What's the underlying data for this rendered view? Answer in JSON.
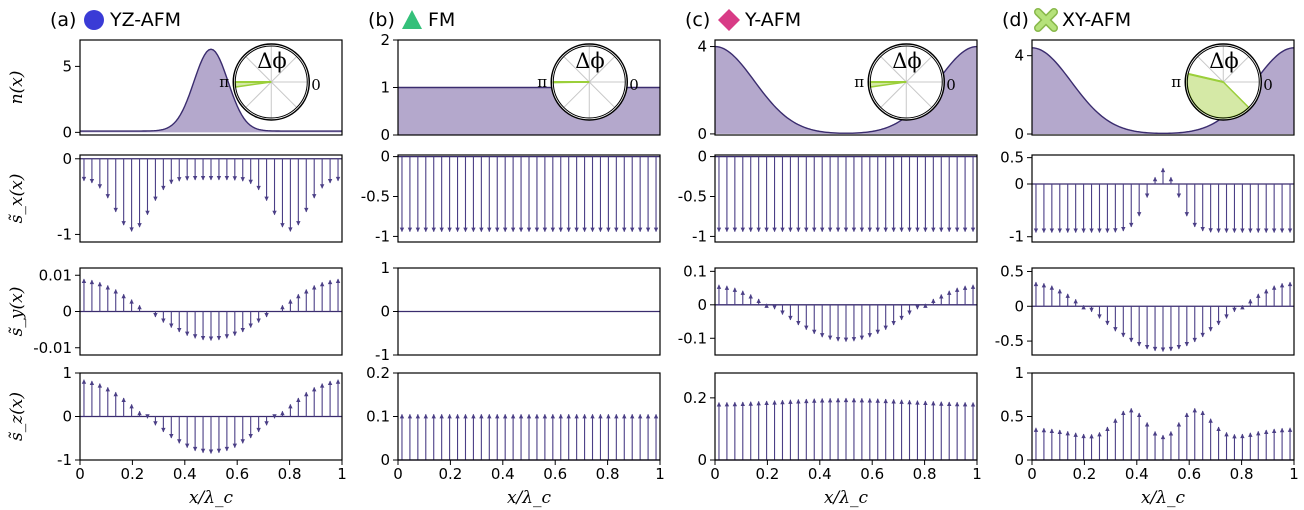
{
  "colors": {
    "density_fill": "#b4a8cc",
    "line": "#3a2c6e",
    "arrow": "#4b3f86",
    "inset_wedge": "#9bcf3a",
    "inset_wedge_fill": "#d5e9a6",
    "yz_marker": "#3a3bd6",
    "fm_marker": "#34c07a",
    "yafm_marker": "#d83b86",
    "xyafm_marker": "#b5e27a"
  },
  "xlabel": "x/λ_c",
  "row_labels": [
    "n(x)",
    "s̃_x(x)",
    "s̃_y(x)",
    "s̃_z(x)"
  ],
  "inset": {
    "label": "Δϕ",
    "left_label": "π",
    "right_label": "0"
  },
  "chart_data": [
    {
      "type": "area",
      "title": "(a)",
      "name": "YZ-AFM",
      "marker": "circle",
      "marker_color": "#3a3bd6",
      "x_range": [
        0,
        1
      ],
      "x_ticks": [
        "0",
        "0.2",
        "0.4",
        "0.6",
        "0.8",
        "1"
      ],
      "density": {
        "shape": "gaussian",
        "center": 0.5,
        "width": 0.065,
        "peak": 6.3,
        "base": 0.1,
        "ylim": [
          -0.2,
          7
        ],
        "yticks": [
          {
            "v": 0,
            "l": "0"
          },
          {
            "v": 5,
            "l": "5"
          }
        ]
      },
      "inset_wedge": {
        "from_deg": 180,
        "to_deg": 188
      },
      "sx": {
        "kind": "profile",
        "form": "double-dip",
        "ylim": [
          -1.1,
          0.05
        ],
        "yticks": [
          {
            "v": 0,
            "l": "0"
          },
          {
            "v": -1,
            "l": "-1"
          }
        ]
      },
      "sy": {
        "kind": "profile",
        "form": "cos",
        "amp": 0.0085,
        "base": 0.0005,
        "ylim": [
          -0.012,
          0.012
        ],
        "yticks": [
          {
            "v": 0.01,
            "l": "0.01"
          },
          {
            "v": 0,
            "l": "0"
          },
          {
            "v": -0.01,
            "l": "-0.01"
          }
        ]
      },
      "sz": {
        "kind": "profile",
        "form": "cos",
        "amp": 0.85,
        "base": 0.0,
        "ylim": [
          -1,
          1
        ],
        "yticks": [
          {
            "v": 1,
            "l": "1"
          },
          {
            "v": 0,
            "l": "0"
          },
          {
            "v": -1,
            "l": "-1"
          }
        ]
      }
    },
    {
      "type": "area",
      "title": "(b)",
      "name": "FM",
      "marker": "triangle",
      "marker_color": "#34c07a",
      "x_range": [
        0,
        1
      ],
      "x_ticks": [
        "0",
        "0.2",
        "0.4",
        "0.6",
        "0.8",
        "1"
      ],
      "density": {
        "shape": "flat",
        "value": 1,
        "ylim": [
          0,
          2
        ],
        "yticks": [
          {
            "v": 0,
            "l": "0"
          },
          {
            "v": 1,
            "l": "1"
          },
          {
            "v": 2,
            "l": "2"
          }
        ]
      },
      "inset_wedge": {
        "from_deg": 180,
        "to_deg": 181
      },
      "sx": {
        "kind": "constant",
        "value": -0.94,
        "ylim": [
          -1.07,
          0.02
        ],
        "yticks": [
          {
            "v": 0,
            "l": "0"
          },
          {
            "v": -0.5,
            "l": "-0.5"
          },
          {
            "v": -1,
            "l": "-1"
          }
        ]
      },
      "sy": {
        "kind": "zero",
        "ylim": [
          -1,
          1
        ],
        "yticks": [
          {
            "v": 1,
            "l": "1"
          },
          {
            "v": 0,
            "l": "0"
          },
          {
            "v": -1,
            "l": "-1"
          }
        ]
      },
      "sz": {
        "kind": "constant",
        "value": 0.105,
        "ylim": [
          0,
          0.2
        ],
        "yticks": [
          {
            "v": 0.2,
            "l": "0.2"
          },
          {
            "v": 0.1,
            "l": "0.1"
          },
          {
            "v": 0,
            "l": "0"
          }
        ]
      }
    },
    {
      "type": "area",
      "title": "(c)",
      "name": "Y-AFM",
      "marker": "diamond",
      "marker_color": "#d83b86",
      "x_range": [
        0,
        1
      ],
      "x_ticks": [
        "0",
        "0.2",
        "0.4",
        "0.6",
        "0.8",
        "1"
      ],
      "density": {
        "shape": "edges",
        "width": 0.15,
        "peak": 4.0,
        "ylim": [
          -0.05,
          4.3
        ],
        "yticks": [
          {
            "v": 0,
            "l": "0"
          },
          {
            "v": 4,
            "l": "4"
          }
        ]
      },
      "inset_wedge": {
        "from_deg": 180,
        "to_deg": 188
      },
      "sx": {
        "kind": "constant",
        "value": -0.94,
        "ylim": [
          -1.07,
          0.02
        ],
        "yticks": [
          {
            "v": 0,
            "l": "0"
          },
          {
            "v": -0.5,
            "l": "-0.5"
          },
          {
            "v": -1,
            "l": "-1"
          }
        ]
      },
      "sy": {
        "kind": "profile",
        "form": "cos",
        "amp": 0.085,
        "base": -0.025,
        "ylim": [
          -0.15,
          0.11
        ],
        "yticks": [
          {
            "v": 0.1,
            "l": "0.1"
          },
          {
            "v": 0,
            "l": "0"
          },
          {
            "v": -0.1,
            "l": "-0.1"
          }
        ]
      },
      "sz": {
        "kind": "profile",
        "form": "cos",
        "amp": -0.007,
        "base": 0.192,
        "ylim": [
          0,
          0.28
        ],
        "yticks": [
          {
            "v": 0.2,
            "l": "0.2"
          },
          {
            "v": 0,
            "l": "0"
          }
        ]
      }
    },
    {
      "type": "area",
      "title": "(d)",
      "name": "XY-AFM",
      "marker": "cross",
      "marker_color": "#b5e27a",
      "x_range": [
        0,
        1
      ],
      "x_ticks": [
        "0",
        "0.2",
        "0.4",
        "0.6",
        "0.8",
        "1"
      ],
      "density": {
        "shape": "edges",
        "width": 0.15,
        "peak": 4.4,
        "ylim": [
          -0.05,
          4.8
        ],
        "yticks": [
          {
            "v": 0,
            "l": "0"
          },
          {
            "v": 4,
            "l": "4"
          }
        ]
      },
      "inset_wedge": {
        "from_deg": 167,
        "to_deg": 315
      },
      "sx": {
        "kind": "profile",
        "form": "center-bump",
        "ylim": [
          -1.1,
          0.55
        ],
        "yticks": [
          {
            "v": 0.5,
            "l": "0.5"
          },
          {
            "v": 0,
            "l": "0"
          },
          {
            "v": -1,
            "l": "-1"
          }
        ]
      },
      "sy": {
        "kind": "profile",
        "form": "cos",
        "amp": 0.5,
        "base": -0.15,
        "ylim": [
          -0.7,
          0.55
        ],
        "yticks": [
          {
            "v": 0.5,
            "l": "0.5"
          },
          {
            "v": 0,
            "l": "0"
          },
          {
            "v": -0.5,
            "l": "-0.5"
          }
        ]
      },
      "sz": {
        "kind": "profile",
        "form": "double-peak",
        "ylim": [
          0,
          1
        ],
        "yticks": [
          {
            "v": 1,
            "l": "1"
          },
          {
            "v": 0.5,
            "l": "0.5"
          },
          {
            "v": 0,
            "l": "0"
          }
        ]
      }
    }
  ]
}
